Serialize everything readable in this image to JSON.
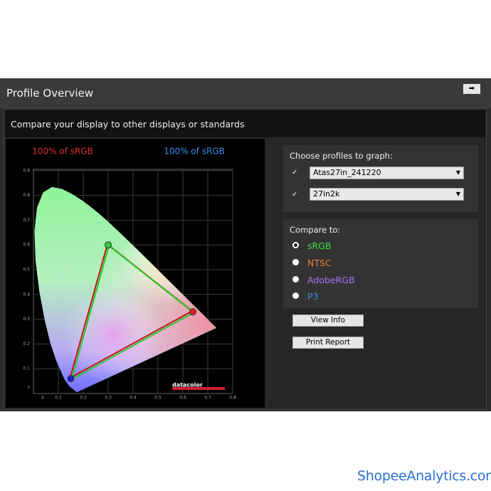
{
  "window": {
    "title": "Profile Overview"
  },
  "panel": {
    "subtitle": "Compare your display to other displays or standards"
  },
  "gamut_labels": [
    "100% of sRGB",
    "100% of sRGB"
  ],
  "chart_axes": {
    "x_label": "X",
    "y_label": "Y",
    "x_ticks": [
      "0.1",
      "0.2",
      "0.3",
      "0.4",
      "0.5",
      "0.6",
      "0.7",
      "0.8"
    ],
    "y_ticks": [
      "0.1",
      "0.2",
      "0.3",
      "0.4",
      "0.5",
      "0.6",
      "0.7",
      "0.8",
      "0.9"
    ]
  },
  "logo": "datacolor",
  "profiles": {
    "heading": "Choose profiles to graph:",
    "items": [
      "Atas27in_241220",
      "27in2k"
    ]
  },
  "compare": {
    "heading": "Compare to:",
    "options": [
      "sRGB",
      "NTSC",
      "AdobeRGB",
      "P3"
    ]
  },
  "buttons": [
    "View Info",
    "Print Report"
  ],
  "watermark": "ShopeeAnalytics.com"
}
